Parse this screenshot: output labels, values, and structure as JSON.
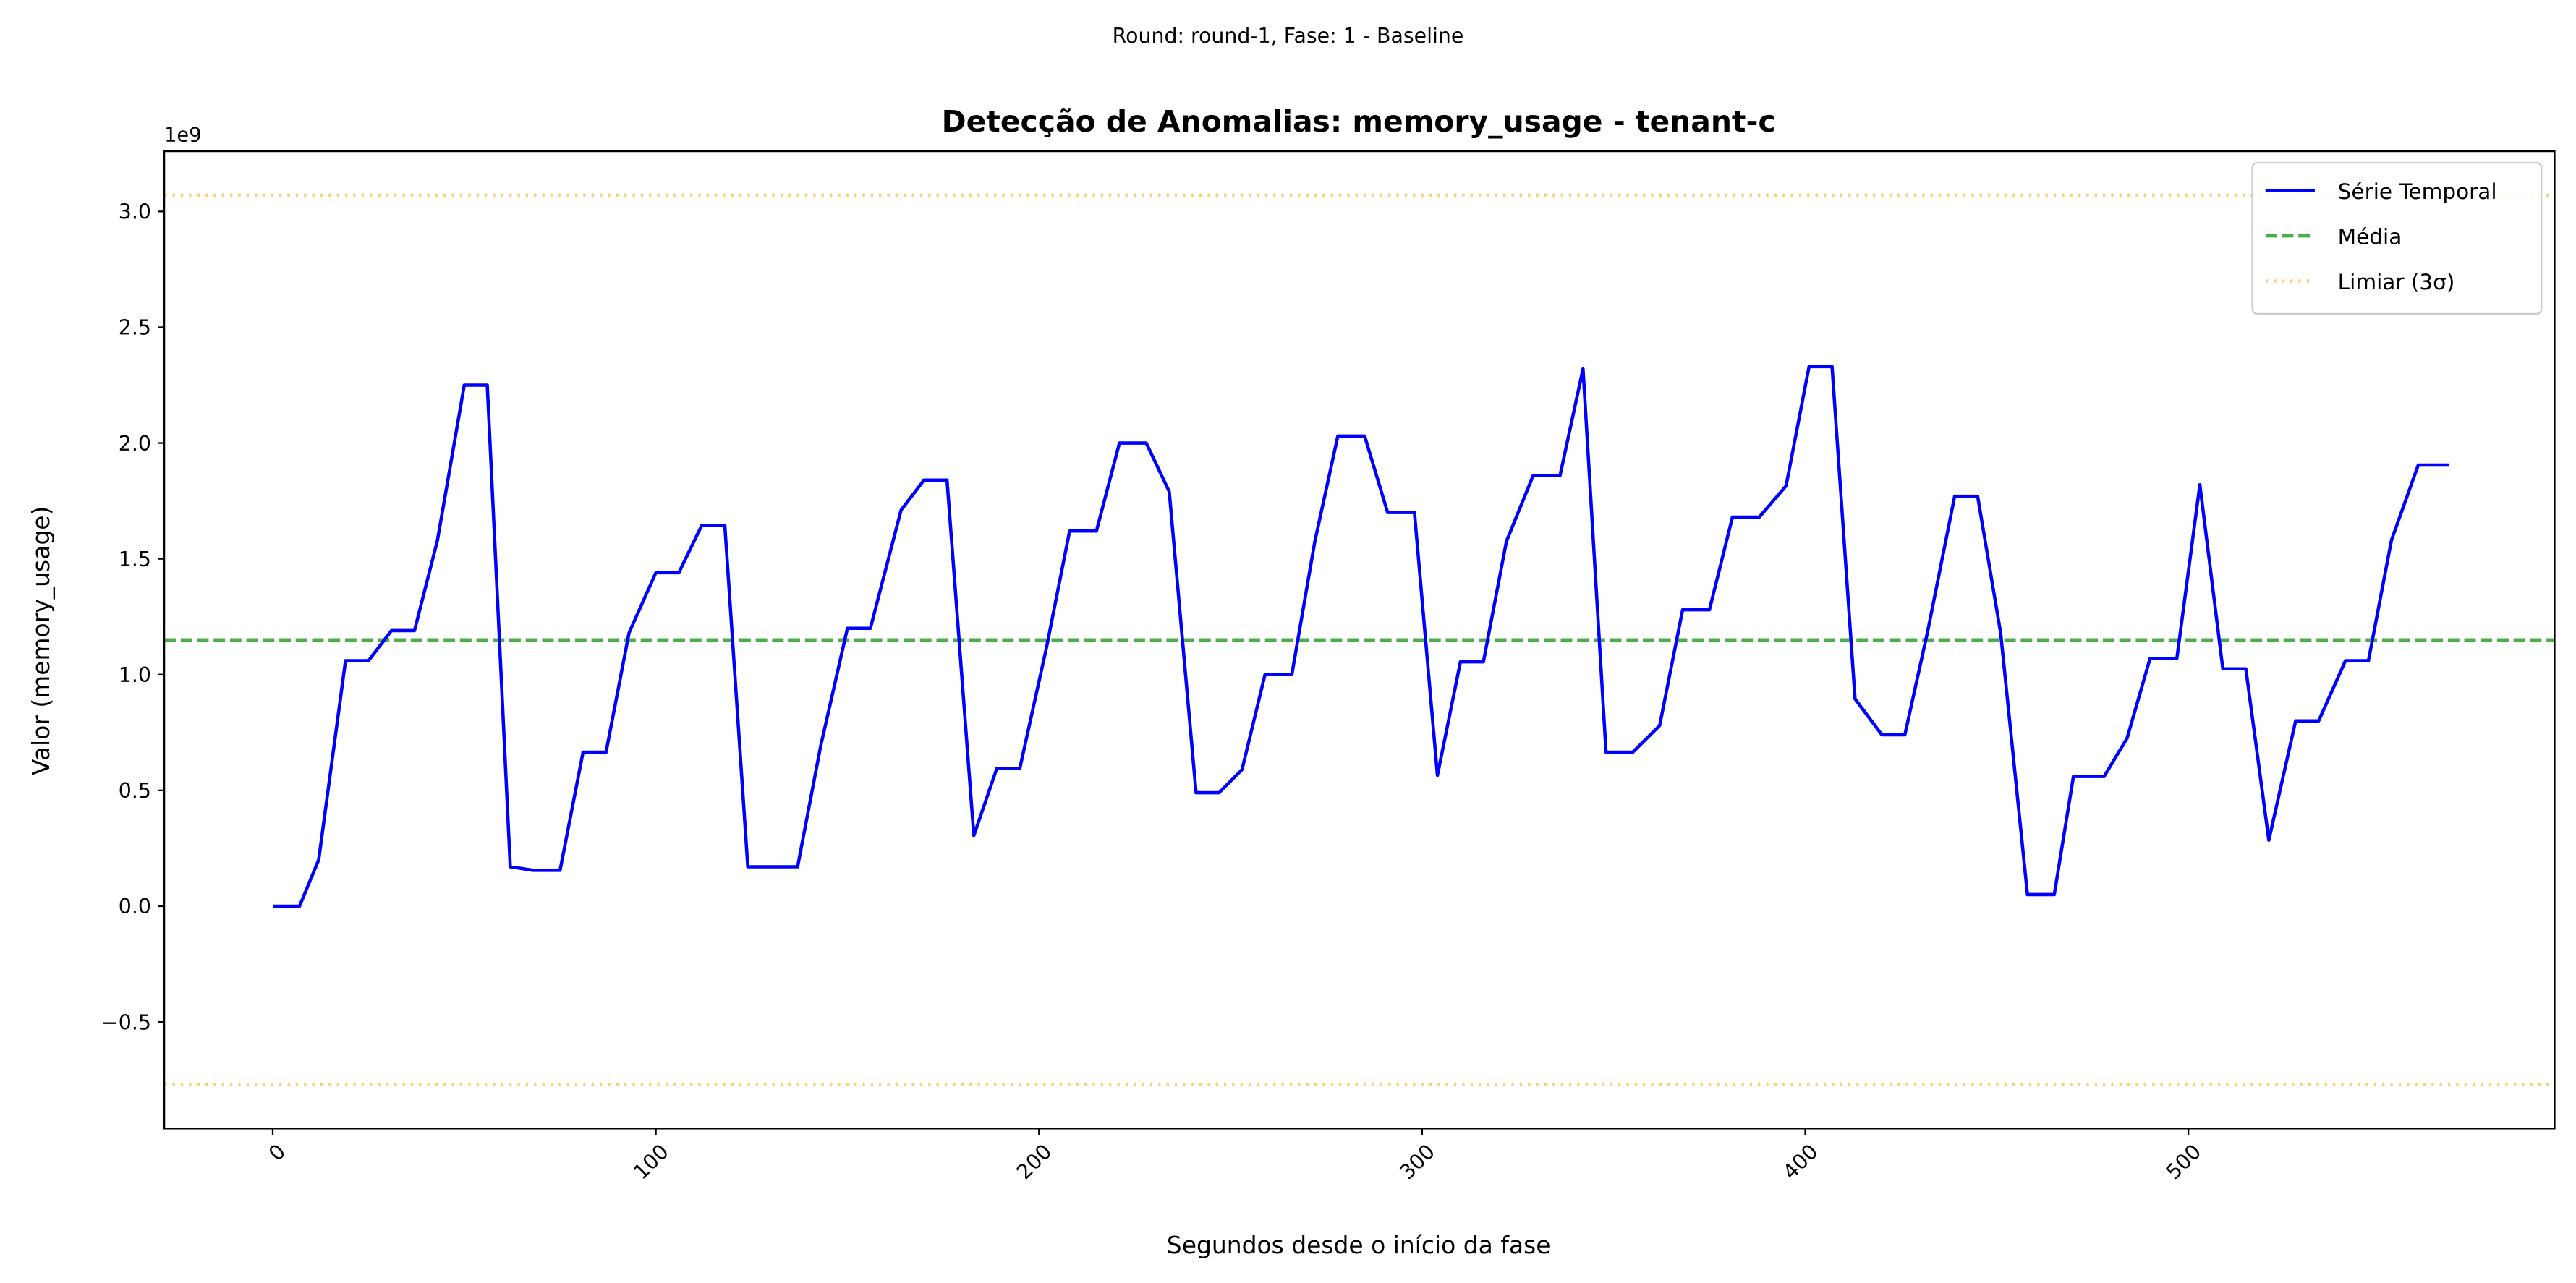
{
  "chart_data": {
    "type": "line",
    "suptitle": "Round: round-1, Fase: 1 - Baseline",
    "title": "Detecção de Anomalias: memory_usage - tenant-c",
    "xlabel": "Segundos desde o início da fase",
    "ylabel": "Valor (memory_usage)",
    "y_offset_label": "1e9",
    "x": [
      0,
      7,
      12,
      19,
      25,
      31,
      37,
      43,
      50,
      56,
      62,
      68,
      75,
      81,
      87,
      93,
      100,
      106,
      112,
      118,
      124,
      131,
      137,
      143,
      150,
      156,
      164,
      170,
      176,
      183,
      189,
      195,
      202,
      208,
      215,
      221,
      228,
      234,
      241,
      247,
      253,
      259,
      266,
      272,
      278,
      285,
      291,
      298,
      304,
      310,
      316,
      322,
      329,
      336,
      342,
      348,
      355,
      362,
      368,
      375,
      381,
      388,
      395,
      401,
      407,
      413,
      420,
      426,
      432,
      439,
      445,
      451,
      458,
      465,
      470,
      478,
      484,
      490,
      497,
      503,
      509,
      515,
      521,
      528,
      534,
      541,
      547,
      553,
      560,
      568
    ],
    "series": [
      {
        "name": "Série Temporal",
        "color": "#0000ff",
        "values": [
          0,
          0,
          0.2,
          1.06,
          1.06,
          1.19,
          1.19,
          1.58,
          2.25,
          2.25,
          0.17,
          0.155,
          0.155,
          0.665,
          0.665,
          1.18,
          1.44,
          1.44,
          1.645,
          1.645,
          0.17,
          0.17,
          0.17,
          0.69,
          1.2,
          1.2,
          1.71,
          1.84,
          1.84,
          0.305,
          0.595,
          0.595,
          1.12,
          1.62,
          1.62,
          2.0,
          2.0,
          1.79,
          0.49,
          0.49,
          0.59,
          1.0,
          1.0,
          1.575,
          2.03,
          2.03,
          1.7,
          1.7,
          0.565,
          1.055,
          1.055,
          1.575,
          1.86,
          1.86,
          2.32,
          0.665,
          0.665,
          0.78,
          1.28,
          1.28,
          1.68,
          1.68,
          1.815,
          2.33,
          2.33,
          0.895,
          0.74,
          0.74,
          1.19,
          1.77,
          1.77,
          1.18,
          0.05,
          0.05,
          0.56,
          0.56,
          0.725,
          1.07,
          1.07,
          1.82,
          1.025,
          1.025,
          0.285,
          0.8,
          0.8,
          1.06,
          1.06,
          1.58,
          1.905,
          1.905
        ]
      }
    ],
    "mean_line": {
      "name": "Média",
      "color": "#2ca02c",
      "value": 1.15
    },
    "threshold": {
      "name": "Limiar (3σ)",
      "color": "#ffa500",
      "values": [
        3.07,
        -0.77
      ]
    },
    "xlim": [
      -28.3,
      595.6
    ],
    "ylim": [
      -0.96,
      3.26
    ],
    "xticks": [
      0,
      100,
      200,
      300,
      400,
      500
    ],
    "yticks": [
      {
        "value": -0.5,
        "label": "−0.5"
      },
      {
        "value": 0,
        "label": "0.0"
      },
      0.5,
      {
        "value": 1,
        "label": "1.0"
      },
      1.5,
      {
        "value": 2,
        "label": "2.0"
      },
      2.5,
      {
        "value": 3,
        "label": "3.0"
      }
    ],
    "legend": "upper right"
  }
}
